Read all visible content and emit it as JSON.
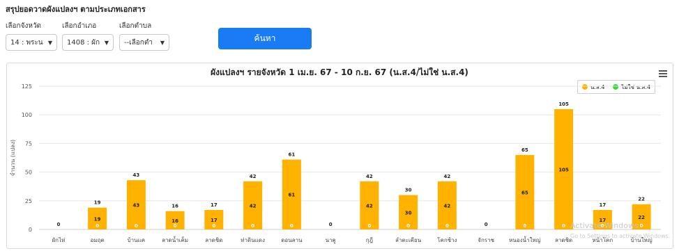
{
  "page": {
    "title": "สรุปยอดวาดผังแปลงฯ ตามประเภทเอกสาร"
  },
  "filters": {
    "province_label": "เลือกจังหวัด",
    "province_value": "14 : พระน",
    "district_label": "เลือกอำเภอ",
    "district_value": "1408 : ผัก",
    "subdistrict_label": "เลือกตำบล",
    "subdistrict_value": "--เลือกตำ",
    "search_label": "ค้นหา"
  },
  "watermark": {
    "line1": "Activate Windows",
    "line2": "Go to Settings to activate Windows."
  },
  "colors": {
    "accent": "#1a7cf5",
    "series1": "#ffb200",
    "series2": "#33dd33"
  },
  "icons": {
    "chart_menu": "hamburger-menu-icon",
    "dropdown": "chevron-down-icon"
  },
  "chart_data": {
    "type": "bar",
    "title": "ผังแปลงฯ รายจังหวัด 1 เม.ย. 67 - 10 ก.ย. 67 (น.ส.4/ไม่ใช่ น.ส.4)",
    "ylabel": "จำนวน (แปลง)",
    "xlabel": "",
    "ylim": [
      0,
      125
    ],
    "yticks": [
      0,
      25,
      50,
      75,
      100,
      125
    ],
    "grid": true,
    "legend_position": "top-right",
    "categories": [
      "ผักไห่",
      "อมฤต",
      "บ้านแค",
      "ลาดน้ำเค็ม",
      "ลาดชิด",
      "ท่าดินแดง",
      "ดอนลาน",
      "นาคู",
      "กุฎี",
      "ลำตะเคียน",
      "โคกช้าง",
      "จักราช",
      "หนองน้ำใหญ่",
      "ลาดชิด",
      "หน้าโคก",
      "บ้านใหญ่"
    ],
    "series": [
      {
        "name": "น.ส.4",
        "color": "#ffb200",
        "values": [
          0,
          19,
          43,
          16,
          17,
          42,
          61,
          0,
          42,
          30,
          42,
          0,
          65,
          105,
          17,
          22
        ]
      },
      {
        "name": "ไม่ใช่ น.ส.4",
        "color": "#33dd33",
        "values": [
          0,
          0,
          0,
          0,
          0,
          0,
          0,
          0,
          0,
          0,
          0,
          0,
          0,
          0,
          0,
          0
        ]
      }
    ]
  }
}
